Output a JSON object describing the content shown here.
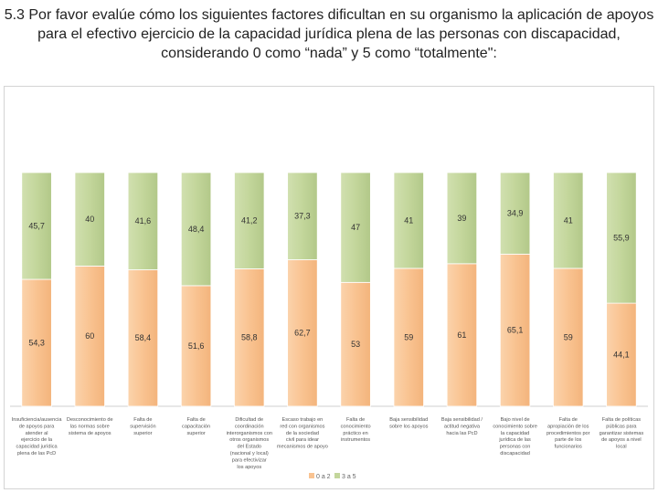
{
  "title": "5.3 Por favor evalúe cómo los siguientes  factores dificultan en su organismo la aplicación de apoyos para el efectivo ejercicio de la capacidad jurídica plena de las personas con discapacidad, considerando 0 como “nada” y 5 como “totalmente\":",
  "chart_data": {
    "type": "bar",
    "stacked": true,
    "percent": true,
    "title": "",
    "xlabel": "",
    "ylabel": "",
    "ylim": [
      0,
      100
    ],
    "grid": false,
    "legend_position": "bottom",
    "categories": [
      "Insuficiencia/ausencia de apoyos para atender al ejercicio de la capacidad jurídica plena de las PcD",
      "Desconocimiento de las normas sobre sistema de apoyos",
      "Falta de supervisión superior",
      "Falta de capacitación superior",
      "Dificultad de coordinación interorganismos con otros organismos del Estado (nacional y local) para efectivizar los apoyos",
      "Escaso trabajo en red con organismos de la sociedad civil para idear mecanismos de apoyo",
      "Falta de conocimiento práctico en instrumentos",
      "Baja sensibilidad sobre los apoyos",
      "Baja sensibilidad / actitud negativa hacia las PcD",
      "Bajo nivel de conocimiento sobre la capacidad jurídica de las personas con discapacidad",
      "Falta de apropiación de los procedimientos por parte de los funcionarios",
      "Falta de políticas públicas para garantizar sistemas de apoyos a nivel local"
    ],
    "series": [
      {
        "name": "0 a 2",
        "color": "#f9c391",
        "values": [
          54.3,
          60,
          58.4,
          51.6,
          58.8,
          62.7,
          53,
          59,
          61,
          65.1,
          59,
          44.1
        ]
      },
      {
        "name": "3 a 5",
        "color": "#c3d69b",
        "values": [
          45.7,
          40,
          41.6,
          48.4,
          41.2,
          37.3,
          47,
          41,
          39,
          34.9,
          41,
          55.9
        ]
      }
    ],
    "value_labels": {
      "0 a 2": [
        "54,3",
        "60",
        "58,4",
        "51,6",
        "58,8",
        "62,7",
        "53",
        "59",
        "61",
        "65,1",
        "59",
        "44,1"
      ],
      "3 a 5": [
        "45,7",
        "40",
        "41,6",
        "48,4",
        "41,2",
        "37,3",
        "47",
        "41",
        "39",
        "34,9",
        "41",
        "55,9"
      ]
    }
  }
}
